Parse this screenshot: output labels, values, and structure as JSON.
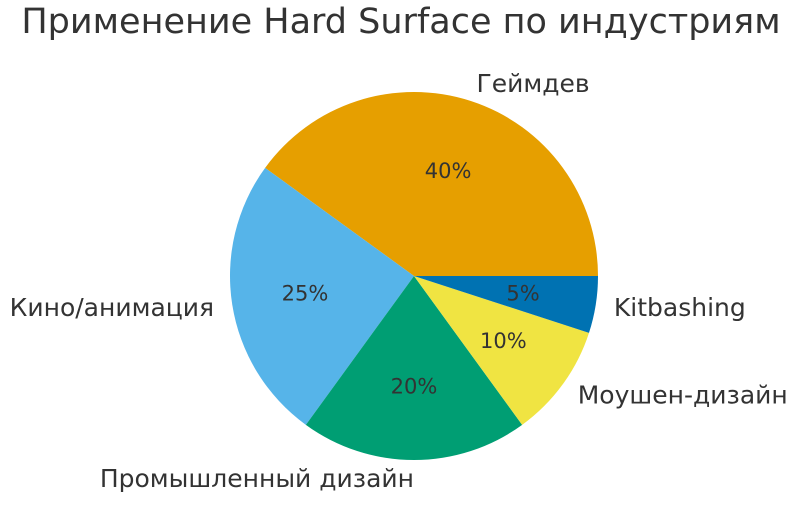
{
  "chart_data": {
    "type": "pie",
    "title": "Применение Hard Surface по индустриям",
    "categories": [
      "Геймдев",
      "Кино/анимация",
      "Промышленный дизайн",
      "Моушен-дизайн",
      "Kitbashing"
    ],
    "values": [
      40,
      25,
      20,
      10,
      5
    ],
    "value_labels": [
      "40%",
      "25%",
      "20%",
      "10%",
      "5%"
    ],
    "colors": [
      "#E69F00",
      "#56B4E9",
      "#009E73",
      "#F0E442",
      "#0072B2"
    ],
    "start_angle": 0,
    "direction": "counterclockwise",
    "legend": "none"
  }
}
